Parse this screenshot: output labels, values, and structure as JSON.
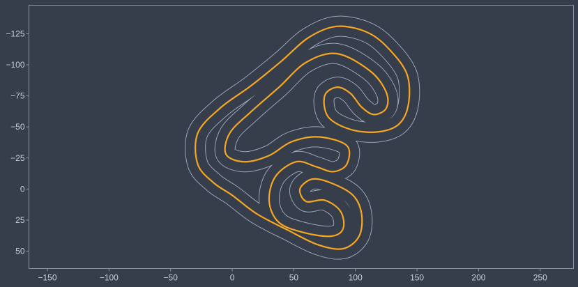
{
  "chart_data": {
    "type": "line",
    "title": "",
    "xlabel": "",
    "ylabel": "",
    "xlim": [
      -165,
      277
    ],
    "ylim": [
      -148,
      64
    ],
    "y_axis_inverted": true,
    "grid": false,
    "legend": "none",
    "x_ticks": [
      -150,
      -100,
      -50,
      0,
      50,
      100,
      150,
      200,
      250
    ],
    "y_ticks": [
      -125,
      -100,
      -75,
      -50,
      -25,
      0,
      25,
      50
    ],
    "colors": {
      "background": "#363e4b",
      "frame": "#8795aa",
      "track_edges": "#9aa5b8",
      "centerline": "#7c889c",
      "racing_line": "#f5a623"
    },
    "series": [
      {
        "role": "racing-line",
        "points": [
          [
            0,
            5
          ],
          [
            -15,
            -5
          ],
          [
            -28,
            -20
          ],
          [
            -28,
            -45
          ],
          [
            -10,
            -65
          ],
          [
            15,
            -83
          ],
          [
            40,
            -103
          ],
          [
            62,
            -122
          ],
          [
            85,
            -131
          ],
          [
            110,
            -126
          ],
          [
            128,
            -112
          ],
          [
            142,
            -92
          ],
          [
            143,
            -68
          ],
          [
            135,
            -52
          ],
          [
            118,
            -46
          ],
          [
            96,
            -48
          ],
          [
            78,
            -58
          ],
          [
            75,
            -75
          ],
          [
            85,
            -82
          ],
          [
            96,
            -77
          ],
          [
            105,
            -66
          ],
          [
            115,
            -60
          ],
          [
            125,
            -65
          ],
          [
            125,
            -78
          ],
          [
            112,
            -95
          ],
          [
            85,
            -109
          ],
          [
            60,
            -102
          ],
          [
            38,
            -82
          ],
          [
            15,
            -62
          ],
          [
            -2,
            -45
          ],
          [
            -5,
            -28
          ],
          [
            10,
            -22
          ],
          [
            30,
            -27
          ],
          [
            48,
            -38
          ],
          [
            70,
            -42
          ],
          [
            93,
            -35
          ],
          [
            93,
            -20
          ],
          [
            82,
            -14
          ],
          [
            68,
            -18
          ],
          [
            52,
            -22
          ],
          [
            35,
            -10
          ],
          [
            30,
            10
          ],
          [
            38,
            27
          ],
          [
            58,
            35
          ],
          [
            80,
            38
          ],
          [
            90,
            32
          ],
          [
            88,
            18
          ],
          [
            75,
            9
          ],
          [
            60,
            10
          ],
          [
            55,
            0
          ],
          [
            65,
            -8
          ],
          [
            80,
            -5
          ],
          [
            98,
            5
          ],
          [
            105,
            20
          ],
          [
            103,
            38
          ],
          [
            90,
            48
          ],
          [
            70,
            45
          ],
          [
            45,
            33
          ],
          [
            20,
            20
          ],
          [
            0,
            5
          ]
        ]
      }
    ]
  }
}
